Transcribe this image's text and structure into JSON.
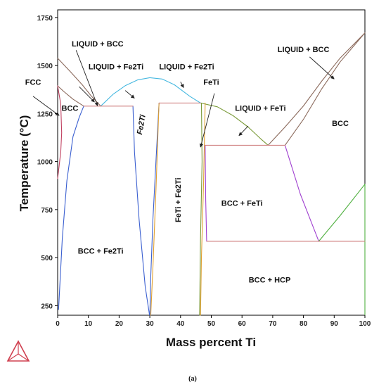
{
  "chart_data": {
    "type": "line",
    "subtype": "phase-diagram",
    "title": "",
    "xlabel": "Mass percent Ti",
    "ylabel": "Temperature (°C)",
    "xlim": [
      0,
      100
    ],
    "ylim": [
      200,
      1790
    ],
    "x_ticks": [
      "0",
      "10",
      "20",
      "30",
      "40",
      "50",
      "60",
      "70",
      "80",
      "90",
      "100"
    ],
    "y_ticks": [
      "250",
      "500",
      "750",
      "1000",
      "1250",
      "1500",
      "1750"
    ],
    "grid": false,
    "caption": "(a)",
    "colors": {
      "axis": "#000000",
      "tie_line": "#d08080",
      "liquidus_bcc": "#8b6a5c",
      "liquidus_fe2ti": "#46b8e0",
      "liquidus_feti": "#7a9a38",
      "solvus_fe2ti": "#3a5fd0",
      "solvus_feti_left": "#e0a030",
      "solvus_feti_right": "#a040d0",
      "hcp_boundary": "#50b040",
      "fcc_loop": "#c04060",
      "logo": "#d04050"
    },
    "series": [
      {
        "color": "#8b6a5c",
        "x": [
          0,
          4,
          8,
          11,
          14
        ],
        "y": [
          1538,
          1470,
          1400,
          1340,
          1289
        ]
      },
      {
        "color": "#8b6a5c",
        "x": [
          0,
          2,
          5,
          8.5
        ],
        "y": [
          1394,
          1365,
          1325,
          1289
        ]
      },
      {
        "color": "#46b8e0",
        "x": [
          14,
          18,
          22,
          26,
          30
        ],
        "y": [
          1289,
          1350,
          1395,
          1425,
          1437
        ]
      },
      {
        "color": "#46b8e0",
        "x": [
          30,
          34,
          38,
          43,
          46.5
        ],
        "y": [
          1437,
          1430,
          1400,
          1340,
          1305
        ]
      },
      {
        "color": "#7a9a38",
        "x": [
          46.5,
          52,
          57,
          62,
          66,
          68.5
        ],
        "y": [
          1305,
          1285,
          1240,
          1180,
          1120,
          1085
        ]
      },
      {
        "color": "#8b6a5c",
        "x": [
          68.5,
          74,
          80,
          86,
          92,
          100
        ],
        "y": [
          1085,
          1180,
          1290,
          1420,
          1540,
          1670
        ]
      },
      {
        "color": "#8b6a5c",
        "x": [
          74,
          80,
          86,
          92,
          100
        ],
        "y": [
          1085,
          1220,
          1380,
          1520,
          1670
        ]
      },
      {
        "color": "#3a5fd0",
        "x": [
          0.3,
          1.5,
          3,
          5,
          7,
          8.5
        ],
        "y": [
          230,
          600,
          900,
          1130,
          1230,
          1289
        ]
      },
      {
        "color": "#3a5fd0",
        "x": [
          24.5,
          25,
          26.5,
          28.5,
          29.9
        ],
        "y": [
          1289,
          1050,
          700,
          350,
          200
        ]
      },
      {
        "color": "#3a5fd0",
        "x": [
          30,
          30.3,
          31,
          32,
          33
        ],
        "y": [
          200,
          400,
          700,
          1000,
          1305
        ]
      },
      {
        "color": "#e0a030",
        "x": [
          30.3,
          31,
          32,
          33
        ],
        "y": [
          200,
          450,
          850,
          1305
        ]
      },
      {
        "color": "#e0a030",
        "x": [
          46.5,
          46.8,
          47.5,
          48
        ],
        "y": [
          200,
          500,
          900,
          1305
        ]
      },
      {
        "color": "#7a9a38",
        "x": [
          46.2,
          46.5,
          47,
          46.8
        ],
        "y": [
          200,
          600,
          1000,
          1305
        ]
      },
      {
        "color": "#a040d0",
        "x": [
          48,
          48.2,
          48.5
        ],
        "y": [
          1085,
          800,
          585
        ]
      },
      {
        "color": "#a040d0",
        "x": [
          74,
          79,
          85
        ],
        "y": [
          1085,
          830,
          585
        ]
      },
      {
        "color": "#50b040",
        "x": [
          85,
          92,
          100
        ],
        "y": [
          585,
          720,
          882
        ]
      },
      {
        "color": "#50b040",
        "x": [
          100,
          100
        ],
        "y": [
          200,
          882
        ]
      },
      {
        "color": "#c04060",
        "x": [
          0,
          1,
          1.3,
          1,
          0
        ],
        "y": [
          912,
          1050,
          1150,
          1300,
          1394
        ]
      },
      {
        "color": "#d08080",
        "x": [
          8.5,
          24.5
        ],
        "y": [
          1289,
          1289
        ]
      },
      {
        "color": "#d08080",
        "x": [
          33,
          46.5
        ],
        "y": [
          1305,
          1305
        ]
      },
      {
        "color": "#d08080",
        "x": [
          48,
          74
        ],
        "y": [
          1085,
          1085
        ]
      },
      {
        "color": "#d08080",
        "x": [
          48.5,
          100
        ],
        "y": [
          585,
          585
        ]
      }
    ],
    "annotations": [
      {
        "text": "LIQUID + BCC",
        "x": 13,
        "y": 1600
      },
      {
        "text": "LIQUID + Fe2Ti",
        "x": 19,
        "y": 1480
      },
      {
        "text": "LIQUID + Fe2Ti",
        "x": 42,
        "y": 1480
      },
      {
        "text": "LIQUID + BCC",
        "x": 80,
        "y": 1570
      },
      {
        "text": "FeTi",
        "x": 50,
        "y": 1400
      },
      {
        "text": "FCC",
        "x": -8,
        "y": 1400
      },
      {
        "text": "BCC",
        "x": 4,
        "y": 1265
      },
      {
        "text": "Fe2Ti",
        "x": 28,
        "y": 1190,
        "rotate": -80
      },
      {
        "text": "LIQUID + FeTi",
        "x": 66,
        "y": 1265
      },
      {
        "text": "BCC",
        "x": 92,
        "y": 1185
      },
      {
        "text": "FeTi + Fe2Ti",
        "x": 40,
        "y": 800,
        "rotate": -90
      },
      {
        "text": "BCC + FeTi",
        "x": 60,
        "y": 770
      },
      {
        "text": "BCC + Fe2Ti",
        "x": 14,
        "y": 520
      },
      {
        "text": "BCC + HCP",
        "x": 69,
        "y": 370
      }
    ],
    "arrows": [
      {
        "from": [
          6,
          1580
        ],
        "to": [
          13,
          1290
        ]
      },
      {
        "from": [
          7,
          1390
        ],
        "to": [
          12,
          1310
        ]
      },
      {
        "from": [
          22,
          1370
        ],
        "to": [
          25,
          1330
        ]
      },
      {
        "from": [
          40,
          1415
        ],
        "to": [
          41,
          1385
        ]
      },
      {
        "from": [
          82,
          1545
        ],
        "to": [
          90,
          1430
        ]
      },
      {
        "from": [
          62,
          1185
        ],
        "to": [
          59,
          1135
        ]
      },
      {
        "from": [
          51,
          1355
        ],
        "to": [
          46.5,
          1075
        ]
      },
      {
        "from": [
          -8,
          1340
        ],
        "to": [
          0.5,
          1240
        ]
      }
    ]
  }
}
